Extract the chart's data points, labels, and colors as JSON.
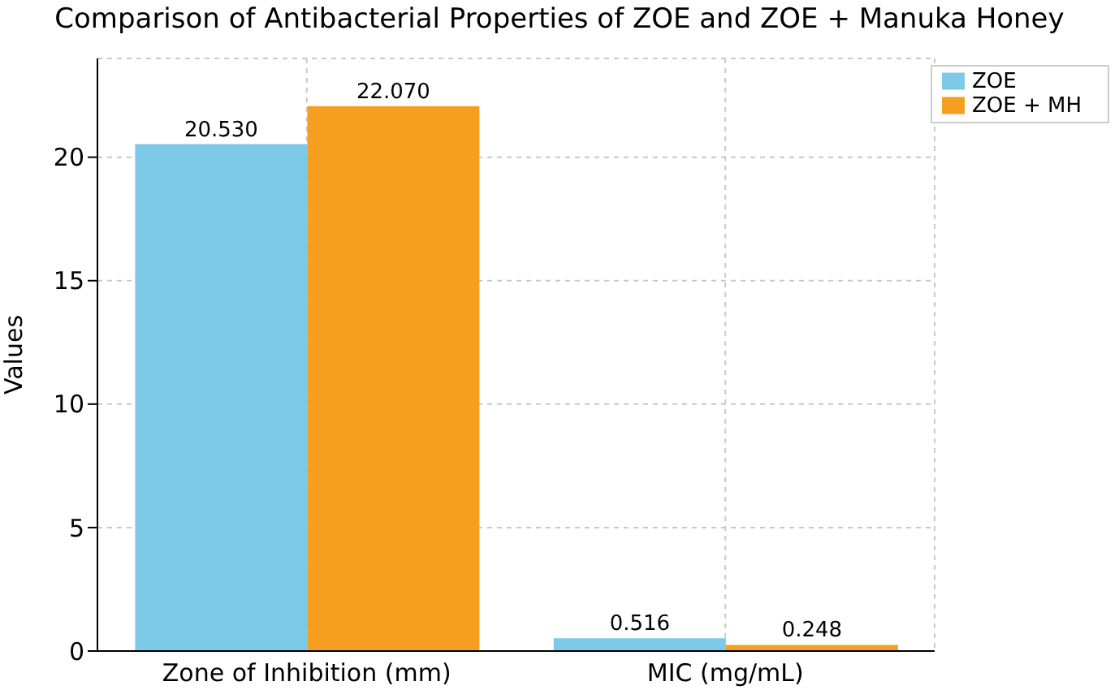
{
  "chart_data": {
    "type": "bar",
    "title": "Comparison of Antibacterial Properties of ZOE and ZOE + Manuka Honey",
    "ylabel": "Values",
    "categories": [
      "Zone of Inhibition (mm)",
      "MIC (mg/mL)"
    ],
    "series": [
      {
        "name": "ZOE",
        "color": "#7ccae8",
        "values": [
          20.53,
          0.516
        ],
        "value_labels": [
          "20.530",
          "0.516"
        ]
      },
      {
        "name": "ZOE + MH",
        "color": "#f59e1f",
        "values": [
          22.07,
          0.248
        ],
        "value_labels": [
          "22.070",
          "0.248"
        ]
      }
    ],
    "ylim": [
      0,
      24
    ],
    "yticks": [
      0,
      5,
      10,
      15,
      20
    ],
    "grid": true,
    "legend": "top right"
  }
}
